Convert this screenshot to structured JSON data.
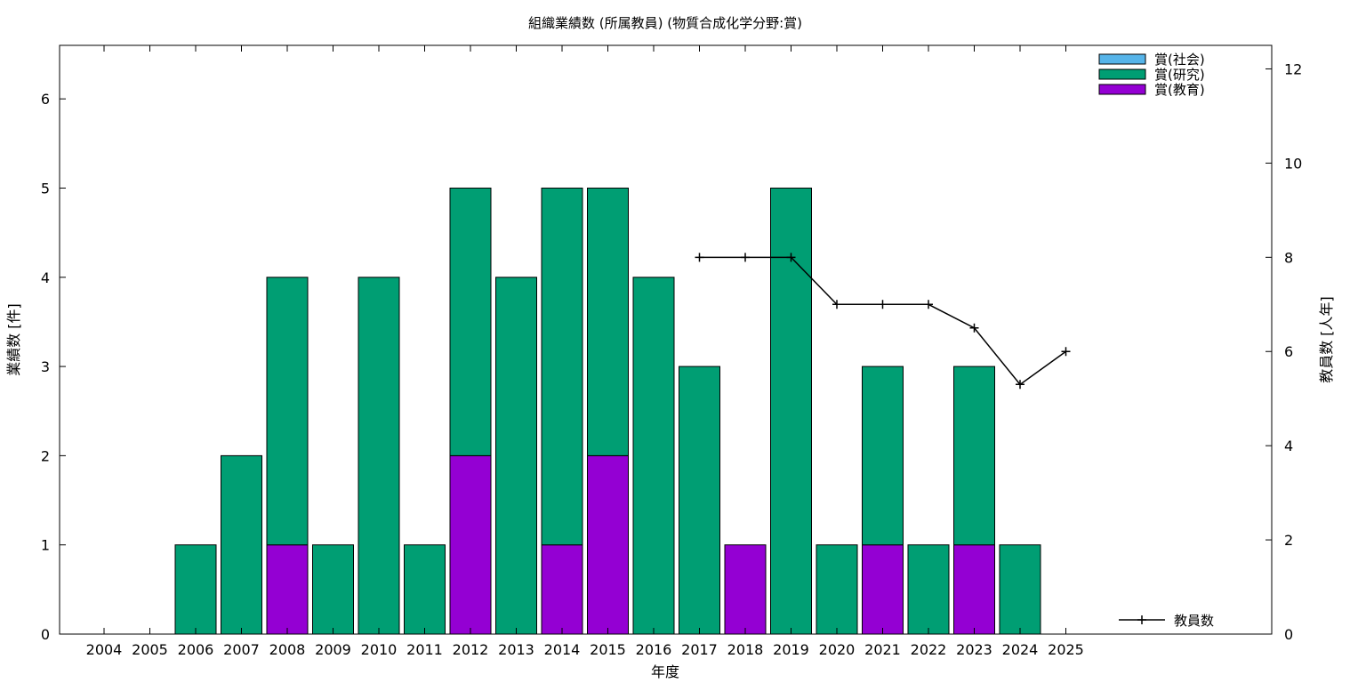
{
  "chart_data": {
    "type": "bar",
    "title": "組織業績数 (所属教員) (物質合成化学分野:賞)",
    "xlabel": "年度",
    "ylabel": "業績数 [件]",
    "y2label": "教員数 [人年]",
    "ylim": [
      0,
      6.6
    ],
    "y2lim": [
      0,
      12.5
    ],
    "yticks": [
      "0",
      "1",
      "2",
      "3",
      "4",
      "5",
      "6"
    ],
    "y2ticks": [
      "0",
      "2",
      "4",
      "6",
      "8",
      "10",
      "12"
    ],
    "stacked": true,
    "legend_position": "top-right",
    "categories": [
      "2004",
      "2005",
      "2006",
      "2007",
      "2008",
      "2009",
      "2010",
      "2011",
      "2012",
      "2013",
      "2014",
      "2015",
      "2016",
      "2017",
      "2018",
      "2019",
      "2020",
      "2021",
      "2022",
      "2023",
      "2024",
      "2025"
    ],
    "series": [
      {
        "name": "賞(教育)",
        "color": "#9400d3",
        "values": [
          0,
          0,
          0,
          0,
          1,
          0,
          0,
          0,
          2,
          0,
          1,
          2,
          0,
          0,
          1,
          0,
          0,
          1,
          0,
          1,
          0,
          0
        ]
      },
      {
        "name": "賞(研究)",
        "color": "#009e73",
        "values": [
          0,
          0,
          1,
          2,
          3,
          1,
          4,
          1,
          3,
          4,
          4,
          3,
          4,
          3,
          0,
          5,
          1,
          2,
          1,
          2,
          1,
          0
        ]
      },
      {
        "name": "賞(社会)",
        "color": "#56b4e9",
        "values": [
          0,
          0,
          0,
          0,
          0,
          0,
          0,
          0,
          0,
          0,
          0,
          0,
          0,
          0,
          0,
          0,
          0,
          0,
          0,
          0,
          0,
          0
        ]
      }
    ],
    "line_series": {
      "name": "教員数",
      "axis": "right",
      "color": "#000000",
      "x": [
        "2017",
        "2018",
        "2019",
        "2020",
        "2021",
        "2022",
        "2023",
        "2024",
        "2025"
      ],
      "values": [
        8,
        8,
        8,
        7,
        7,
        7,
        6.5,
        5.3,
        6
      ]
    },
    "legend_order": [
      "賞(社会)",
      "賞(研究)",
      "賞(教育)"
    ]
  }
}
